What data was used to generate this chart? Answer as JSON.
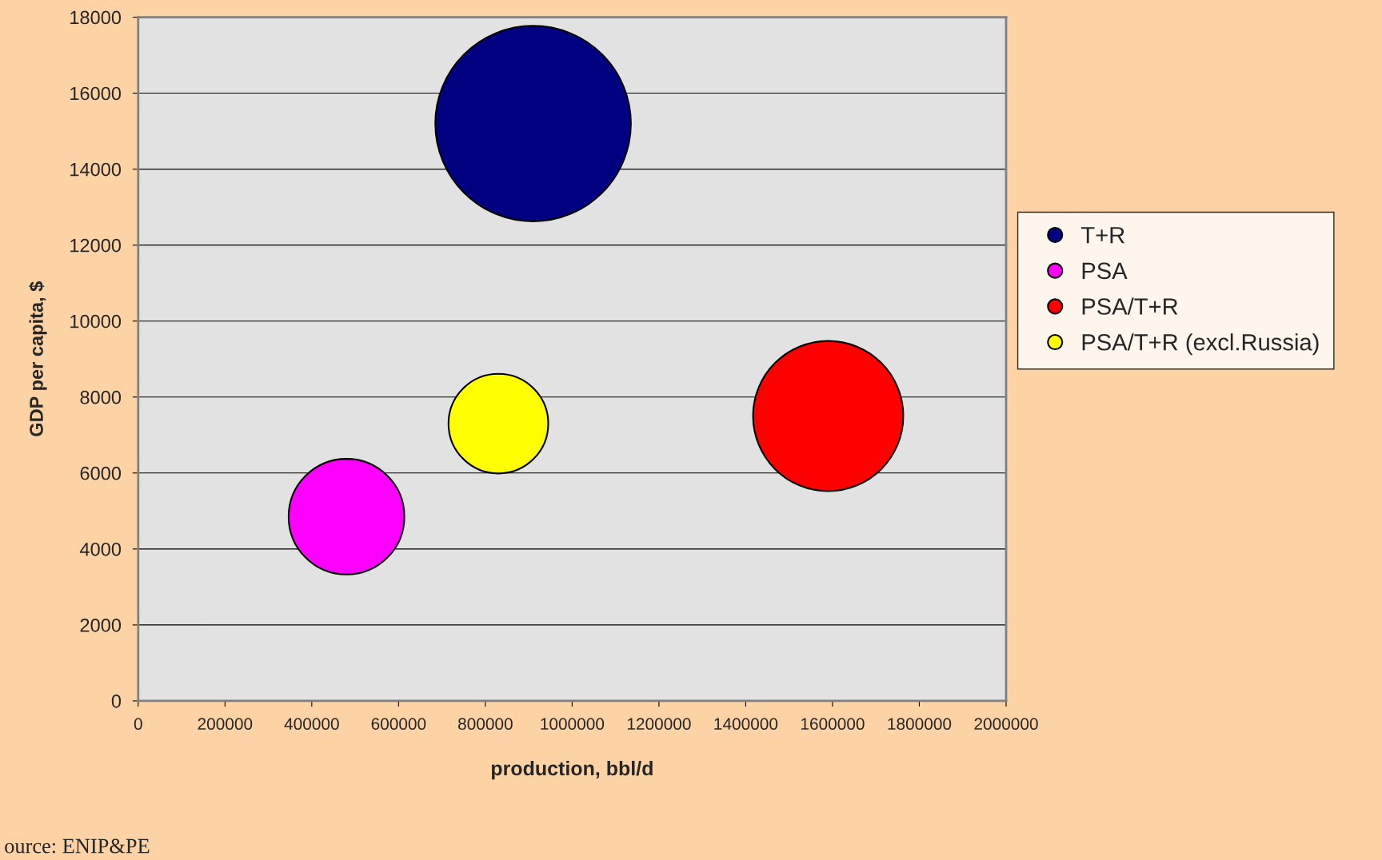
{
  "chart_data": {
    "type": "bubble",
    "xlabel": "production, bbl/d",
    "ylabel": "GDP per capita, $",
    "xlim": [
      0,
      2000000
    ],
    "xticks": [
      0,
      200000,
      400000,
      600000,
      800000,
      1000000,
      1200000,
      1400000,
      1600000,
      1800000,
      2000000
    ],
    "ylim": [
      0,
      18000
    ],
    "yticks": [
      0,
      2000,
      4000,
      6000,
      8000,
      10000,
      12000,
      14000,
      16000,
      18000
    ],
    "grid": "y",
    "legend": "right",
    "marker": "circle",
    "series": [
      {
        "name": "T+R",
        "color": "#000080",
        "x": [
          910000
        ],
        "values": [
          15200
        ],
        "sizes": [
          1
        ]
      },
      {
        "name": "PSA",
        "color": "#ff00ff",
        "x": [
          480000
        ],
        "values": [
          4850
        ],
        "sizes": [
          0.35
        ]
      },
      {
        "name": "PSA/T+R",
        "color": "#ff0000",
        "x": [
          1590000
        ],
        "values": [
          7500
        ],
        "sizes": [
          0.59
        ]
      },
      {
        "name": "PSA/T+R (excl.Russia)",
        "color": "#ffff00",
        "x": [
          830000
        ],
        "values": [
          7300
        ],
        "sizes": [
          0.26
        ]
      }
    ],
    "annotations": [
      "ource: ENIP&PE"
    ]
  }
}
